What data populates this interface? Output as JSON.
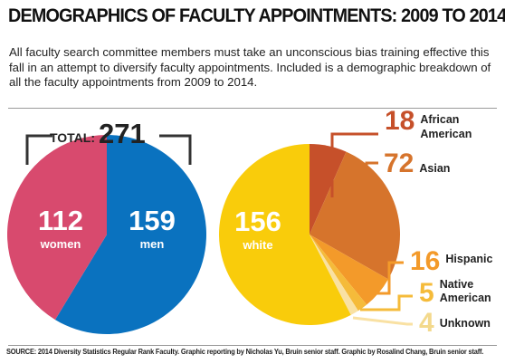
{
  "title": "DEMOGRAPHICS OF FACULTY APPOINTMENTS: 2009 TO 2014",
  "intro": "All faculty search committee members must take an unconscious bias training effective this fall in an attempt to diversify faculty appointments. Included is a demographic breakdown of all the faculty appointments from 2009 to 2014.",
  "source": "SOURCE: 2014 Diversity Statistics Regular Rank Faculty. Graphic reporting by Nicholas Yu, Bruin senior staff. Graphic by Rosalind Chang, Bruin senior staff.",
  "chart_data": [
    {
      "type": "pie",
      "total_label": "TOTAL:",
      "total": 271,
      "slices": [
        {
          "label": "men",
          "value": 159,
          "color": "#0a72bf"
        },
        {
          "label": "women",
          "value": 112,
          "color": "#d84a6e"
        }
      ]
    },
    {
      "type": "pie",
      "slices": [
        {
          "label": "African American",
          "value": 18,
          "color": "#c6502a"
        },
        {
          "label": "Asian",
          "value": 72,
          "color": "#d6742c"
        },
        {
          "label": "Hispanic",
          "value": 16,
          "color": "#f39a2a"
        },
        {
          "label": "Native American",
          "value": 5,
          "color": "#f5bb3a"
        },
        {
          "label": "Unknown",
          "value": 4,
          "color": "#f9e1a3"
        },
        {
          "label": "white",
          "value": 156,
          "color": "#f9cc0b"
        }
      ]
    }
  ]
}
